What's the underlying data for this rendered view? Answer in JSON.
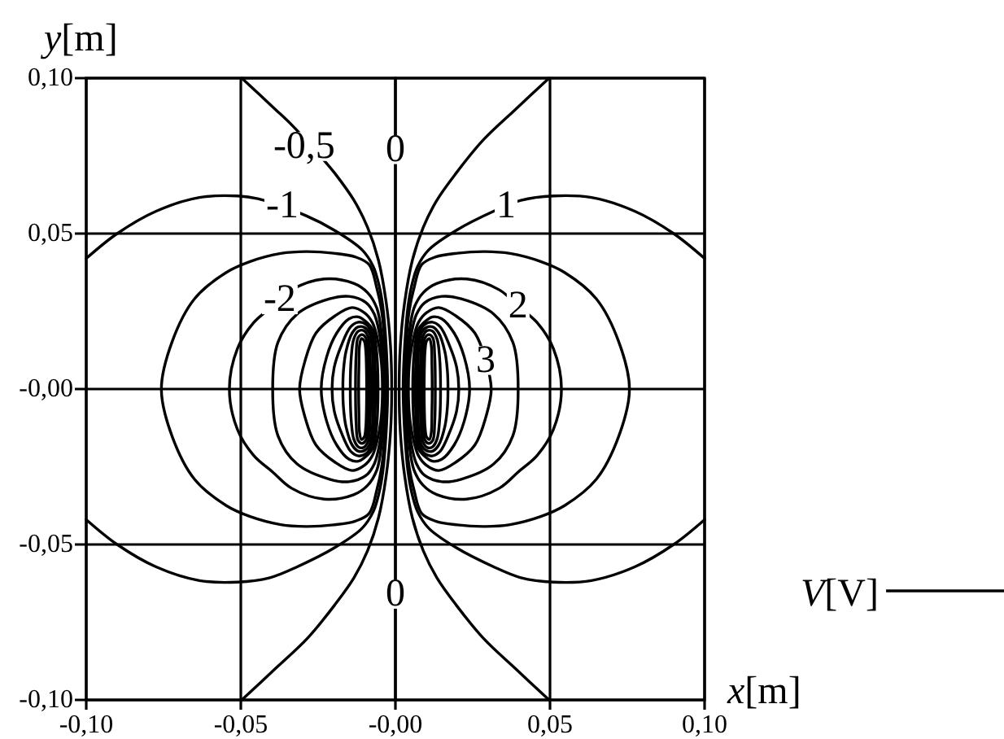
{
  "chart_data": {
    "type": "line",
    "xlabel": "x[m]",
    "ylabel": "y[m]",
    "xlim": [
      -0.1,
      0.1
    ],
    "ylim": [
      -0.1,
      0.1
    ],
    "xticks": [
      {
        "value": -0.1,
        "label": "-0,10"
      },
      {
        "value": -0.05,
        "label": "-0,05"
      },
      {
        "value": 0,
        "label": "-0,00"
      },
      {
        "value": 0.05,
        "label": "0,05"
      },
      {
        "value": 0.1,
        "label": "0,10"
      }
    ],
    "yticks": [
      {
        "value": -0.1,
        "label": "-0,10"
      },
      {
        "value": -0.05,
        "label": "-0,05"
      },
      {
        "value": 0,
        "label": "-0,00"
      },
      {
        "value": 0.05,
        "label": "0,05"
      },
      {
        "value": 0.1,
        "label": "0,10"
      }
    ],
    "grid": true,
    "legend": "right",
    "series": [
      {
        "name": "V[V]",
        "color": "#000000",
        "x": [
          0,
          0
        ],
        "values": [
          0.1,
          -0.1
        ]
      },
      {
        "color": "#000000",
        "x": [
          0.0497,
          0.0389,
          0.0283,
          0.0196,
          0.0134,
          0.009,
          0.0055,
          0.003,
          0.0016,
          0.0012,
          0.0016,
          0.003,
          0.0055,
          0.009,
          0.0134,
          0.0196,
          0.0283,
          0.0389,
          0.0497
        ],
        "values": [
          0.1,
          0.09,
          0.08,
          0.0694,
          0.0607,
          0.052,
          0.0415,
          0.028,
          0.014,
          0,
          -0.014,
          -0.028,
          -0.0415,
          -0.052,
          -0.0607,
          -0.0694,
          -0.08,
          -0.09,
          -0.1
        ]
      },
      {
        "color": "#000000",
        "x": [
          -0.0497,
          -0.0389,
          -0.0335,
          -0.0225,
          -0.0196,
          -0.0134,
          -0.009,
          -0.0055,
          -0.003,
          -0.0016,
          -0.0012,
          -0.0016,
          -0.003,
          -0.0055,
          -0.009,
          -0.0134,
          -0.0196,
          -0.0283,
          -0.0389,
          -0.0497
        ],
        "values": [
          0.1,
          0.09,
          0.0849,
          0.0729,
          0.0694,
          0.0607,
          0.052,
          0.0415,
          0.028,
          0.014,
          0,
          -0.014,
          -0.028,
          -0.0415,
          -0.052,
          -0.0607,
          -0.0694,
          -0.08,
          -0.09,
          -0.1
        ]
      },
      {
        "color": "#000000",
        "x": [
          0.1,
          0.09,
          0.0774,
          0.0634,
          0.0511,
          0.0406,
          0.0318,
          0.0196,
          0.0108,
          0.0072,
          0.0052,
          0.004,
          0.003,
          0.0025,
          0.003,
          0.004,
          0.0052,
          0.0072,
          0.0108,
          0.0196,
          0.0318,
          0.0406,
          0.0511,
          0.0634,
          0.0774,
          0.09,
          0.1
        ],
        "values": [
          0.042,
          0.05,
          0.0572,
          0.0616,
          0.0621,
          0.0607,
          0.0572,
          0.051,
          0.0448,
          0.0395,
          0.033,
          0.026,
          0.014,
          0,
          -0.014,
          -0.026,
          -0.033,
          -0.0395,
          -0.0448,
          -0.051,
          -0.0572,
          -0.0607,
          -0.0621,
          -0.0616,
          -0.0572,
          -0.05,
          -0.042
        ]
      },
      {
        "color": "#000000",
        "x": [
          -0.1,
          -0.09,
          -0.0774,
          -0.0634,
          -0.0511,
          -0.0445,
          -0.029,
          -0.0196,
          -0.0108,
          -0.0072,
          -0.0052,
          -0.004,
          -0.003,
          -0.0025,
          -0.003,
          -0.004,
          -0.0052,
          -0.0072,
          -0.0108,
          -0.0196,
          -0.0318,
          -0.0406,
          -0.0511,
          -0.0634,
          -0.0774,
          -0.09,
          -0.1
        ],
        "values": [
          0.042,
          0.05,
          0.0572,
          0.0616,
          0.0621,
          0.0612,
          0.0558,
          0.051,
          0.0448,
          0.0395,
          0.033,
          0.026,
          0.014,
          0,
          -0.014,
          -0.026,
          -0.033,
          -0.0395,
          -0.0448,
          -0.051,
          -0.0572,
          -0.0607,
          -0.0621,
          -0.0616,
          -0.0572,
          -0.05,
          -0.042
        ]
      }
    ],
    "annotations": [
      {
        "text": "-0,5",
        "x": -0.0295,
        "y": 0.078
      },
      {
        "text": "0",
        "x": 0,
        "y": 0.077
      },
      {
        "text": "-1",
        "x": -0.0366,
        "y": 0.059
      },
      {
        "text": "1",
        "x": 0.0358,
        "y": 0.0588
      },
      "-2",
      "2",
      "3",
      {
        "text": "0",
        "x": 0,
        "y": -0.066
      }
    ]
  }
}
